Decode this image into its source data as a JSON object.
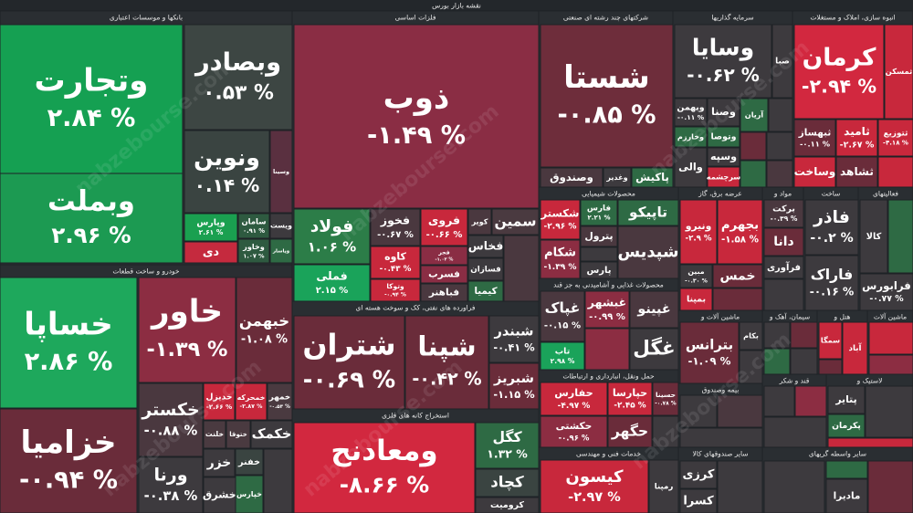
{
  "header": {
    "title": "نقشه بازار بورس"
  },
  "watermark": "nabzebourse.com",
  "sectors": [
    {
      "name": "بانکها و موسسات اعتباری",
      "tiles": [
        {
          "name": "وتجارت",
          "change": "۲.۸۴ %",
          "color": "#15a052"
        },
        {
          "name": "وبملت",
          "change": "۲.۹۶ %",
          "color": "#1c9a52"
        },
        {
          "name": "وبصادر",
          "change": "۰.۵۳ %",
          "color": "#3d4643"
        },
        {
          "name": "ونوین",
          "change": "۰.۱۴ %",
          "color": "#3a4441"
        },
        {
          "name": "وسینا",
          "color": "#5a3040"
        },
        {
          "name": "وپارس",
          "change": "۲.۶۱ %",
          "color": "#1aa050"
        },
        {
          "name": "دی",
          "color": "#c52a3e"
        },
        {
          "name": "سامان",
          "change": "۰.۹۱ %",
          "color": "#2e5a40"
        },
        {
          "name": "وخاور",
          "change": "۱.۰۷ %",
          "color": "#2e5a40"
        },
        {
          "name": "ویست",
          "color": "#3d3a3e"
        },
        {
          "name": "وپاسار",
          "color": "#2e6a44"
        }
      ]
    },
    {
      "name": "خودرو و ساخت قطعات",
      "tiles": [
        {
          "name": "خساپا",
          "change": "۲.۸۶ %",
          "color": "#1ea85c"
        },
        {
          "name": "خزامیا",
          "change": "-۰.۹۴ %",
          "color": "#6a2c3a"
        },
        {
          "name": "خاور",
          "change": "-۱.۳۹ %",
          "color": "#8c2d42"
        },
        {
          "name": "خبهمن",
          "change": "-۱.۰۸ %",
          "color": "#6a2c3a"
        },
        {
          "name": "خکستر",
          "change": "-۰.۸۸ %",
          "color": "#4a383f"
        },
        {
          "name": "خدیزل",
          "change": "-۲.۶۶ %",
          "color": "#c8283c"
        },
        {
          "name": "خمحرکه",
          "change": "-۲.۸۷ %",
          "color": "#c8283c"
        },
        {
          "name": "خمهر",
          "change": "-۰.۵۳ %",
          "color": "#4a3a40"
        },
        {
          "name": "خلنت",
          "color": "#4a3a40"
        },
        {
          "name": "ختوقا",
          "color": "#4a3a40"
        },
        {
          "name": "خکمک",
          "color": "#3d3a3e"
        },
        {
          "name": "خزر",
          "color": "#3d3a3e"
        },
        {
          "name": "خفنر",
          "color": "#3a4441"
        },
        {
          "name": "ورنا",
          "change": "-۰.۳۸ %",
          "color": "#3d3a3e"
        },
        {
          "name": "خشرق",
          "color": "#3d3a3e"
        },
        {
          "name": "خپارس",
          "color": "#2e6a44"
        }
      ]
    },
    {
      "name": "فلزات اساسی",
      "tiles": [
        {
          "name": "ذوب",
          "change": "-۱.۴۹ %",
          "color": "#8a2d44"
        },
        {
          "name": "فولاد",
          "change": "۱.۰۶ %",
          "color": "#2c7d48"
        },
        {
          "name": "فملی",
          "change": "۲.۱۵ %",
          "color": "#1aa35a"
        },
        {
          "name": "فخوز",
          "change": "-۰.۶۷ %",
          "color": "#4a383f"
        },
        {
          "name": "فروی",
          "change": "-۰.۶۶ %",
          "color": "#c8283c"
        },
        {
          "name": "کویر",
          "color": "#4a383f"
        },
        {
          "name": "سمین",
          "color": "#4a3a40"
        },
        {
          "name": "کاوه",
          "change": "-۰.۴۳ %",
          "color": "#c8283c"
        },
        {
          "name": "وتوکا",
          "change": "-۰.۹۴ %",
          "color": "#c8283c"
        },
        {
          "name": "فجر",
          "change": "-۱.۰۲ %",
          "color": "#8a2d44"
        },
        {
          "name": "فسرب",
          "color": "#8a2d44"
        },
        {
          "name": "فخاس",
          "color": "#3d3a3e"
        },
        {
          "name": "فسازان",
          "color": "#3d3a3e"
        },
        {
          "name": "کیمیا",
          "color": "#2e6a44"
        },
        {
          "name": "فباهنر",
          "color": "#4a383f"
        }
      ]
    },
    {
      "name": "فراورده های نفتی، کک و سوخت هسته ای",
      "tiles": [
        {
          "name": "شتران",
          "change": "-۰.۶۹ %",
          "color": "#6a2c3a"
        },
        {
          "name": "شپنا",
          "change": "-۰.۴۲ %",
          "color": "#6a2c3a"
        },
        {
          "name": "شبندر",
          "change": "-۰.۴۱ %",
          "color": "#3d3a3e"
        },
        {
          "name": "شبریز",
          "change": "-۱.۱۵ %",
          "color": "#6a2c3a"
        }
      ]
    },
    {
      "name": "استخراج کانه های فلزی",
      "tiles": [
        {
          "name": "ومعادنح",
          "change": "-۸.۶۶ %",
          "color": "#d2283f"
        },
        {
          "name": "کگل",
          "change": "۱.۳۲ %",
          "color": "#2e6a44"
        },
        {
          "name": "کچاد",
          "color": "#3a4441"
        },
        {
          "name": "کرومیت",
          "color": "#3d3a3e"
        }
      ]
    },
    {
      "name": "شرکتهای چند رشته ای صنعتی",
      "tiles": [
        {
          "name": "شستا",
          "change": "-۰.۸۵ %",
          "color": "#6e2d3b"
        },
        {
          "name": "وصندوق",
          "color": "#4a383f"
        },
        {
          "name": "وغدیر",
          "color": "#3d3a3e"
        },
        {
          "name": "پاکیش",
          "color": "#2e6a44"
        }
      ]
    },
    {
      "name": "محصولات شیمیایی",
      "tiles": [
        {
          "name": "شکستر",
          "change": "-۲.۹۶ %",
          "color": "#c8283c"
        },
        {
          "name": "شکام",
          "change": "-۱.۳۹ %",
          "color": "#8c2d42"
        },
        {
          "name": "فارس",
          "change": "۲.۲۱ %",
          "color": "#2e6a44"
        },
        {
          "name": "تاپیکو",
          "color": "#2e6a44"
        },
        {
          "name": "پترول",
          "color": "#4a383f"
        },
        {
          "name": "پارس",
          "color": "#3d3a3e"
        },
        {
          "name": "شپدیس",
          "color": "#4a383f"
        }
      ]
    },
    {
      "name": "محصولات غذایی و آشامیدنی به جز قند",
      "tiles": [
        {
          "name": "غپاک",
          "change": "-۰.۱۵ %",
          "color": "#4a383f"
        },
        {
          "name": "غبشهر",
          "change": "-۰.۹۹ %",
          "color": "#8c2d42"
        },
        {
          "name": "غپینو",
          "color": "#4a383f"
        },
        {
          "name": "تاب",
          "change": "۲.۹۸ %",
          "color": "#1aa35a"
        },
        {
          "name": "غگل",
          "color": "#3d3a3e"
        }
      ]
    },
    {
      "name": "حمل ونقل، انبارداری و ارتباطات",
      "tiles": [
        {
          "name": "حفارس",
          "change": "-۴.۹۷ %",
          "color": "#c8283c"
        },
        {
          "name": "حپارسا",
          "change": "-۲.۴۵ %",
          "color": "#c8283c"
        },
        {
          "name": "حسینا",
          "change": "-۰.۷۸ %",
          "color": "#6a2c3a"
        },
        {
          "name": "حکشتی",
          "change": "-۰.۹۶ %",
          "color": "#8c2d42"
        },
        {
          "name": "حگهر",
          "color": "#6a2c3a"
        }
      ]
    },
    {
      "name": "خدمات فنی و مهندسی",
      "tiles": [
        {
          "name": "کیسون",
          "change": "-۲.۹۷ %",
          "color": "#c8283c"
        },
        {
          "name": "رمپنا",
          "color": "#3d3a3e"
        }
      ]
    },
    {
      "name": "سرمایه گذاریها",
      "tiles": [
        {
          "name": "وسایا",
          "change": "-۰.۶۲ %",
          "color": "#3d3a3e"
        },
        {
          "name": "صبا",
          "color": "#3d3a3e"
        },
        {
          "name": "وبهمن",
          "change": "-۰.۱۱ %",
          "color": "#3d3a3e"
        },
        {
          "name": "وصنا",
          "color": "#3d3a3e"
        },
        {
          "name": "آریان",
          "color": "#2e6a44"
        },
        {
          "name": "وخارزم",
          "color": "#2e6a44"
        },
        {
          "name": "وتوصا",
          "color": "#2e6a44"
        },
        {
          "name": "والی",
          "color": "#3d3a3e"
        },
        {
          "name": "وسپه",
          "color": "#3d3a3e"
        },
        {
          "name": "سرچشمه",
          "color": "#c8283c"
        }
      ]
    },
    {
      "name": "انبوه سازی، املاک و مستغلات",
      "tiles": [
        {
          "name": "کرمان",
          "change": "-۲.۹۴ %",
          "color": "#d2283f"
        },
        {
          "name": "ثمسکن",
          "color": "#c8283c"
        },
        {
          "name": "ثبهساز",
          "change": "-۰.۱۱ %",
          "color": "#6a2c3a"
        },
        {
          "name": "ثامید",
          "change": "-۲.۶۷ %",
          "color": "#c8283c"
        },
        {
          "name": "ثتوزیع",
          "change": "-۴.۱۸ %",
          "color": "#c8283c"
        },
        {
          "name": "وساخت",
          "color": "#c8283c"
        },
        {
          "name": "ثشاهد",
          "color": "#6a2c3a"
        }
      ]
    },
    {
      "name": "عرضه برق، گاز",
      "tiles": [
        {
          "name": "ونیرو",
          "change": "-۲.۹ %",
          "color": "#c8283c"
        },
        {
          "name": "بجهرم",
          "change": "-۱.۵۸ %",
          "color": "#c8283c"
        },
        {
          "name": "مبین",
          "change": "-۰.۳۰ %",
          "color": "#3d3a3e"
        },
        {
          "name": "بمپنا",
          "color": "#c8283c"
        },
        {
          "name": "خمس",
          "color": "#6a2c3a"
        }
      ]
    },
    {
      "name": "مواد و",
      "tiles": [
        {
          "name": "برکت",
          "change": "-۰.۳۹ %",
          "color": "#4a383f"
        },
        {
          "name": "دانا",
          "color": "#6a2c3a"
        },
        {
          "name": "فرآوری",
          "color": "#3d3a3e"
        }
      ]
    },
    {
      "name": "ساخت",
      "tiles": [
        {
          "name": "فاذر",
          "change": "-۰.۲ %",
          "color": "#3d3a3e"
        },
        {
          "name": "فاراک",
          "change": "-۰.۱۶ %",
          "color": "#3d3a3e"
        }
      ]
    },
    {
      "name": "فعالیتهای",
      "tiles": [
        {
          "name": "کالا",
          "color": "#3d3a3e"
        },
        {
          "name": "فرابورس",
          "change": "-۰.۷۷ %",
          "color": "#3d3a3e"
        }
      ]
    },
    {
      "name": "ماشین آلات و",
      "tiles": [
        {
          "name": "بترانس",
          "change": "-۱.۰۹ %",
          "color": "#6a2c3a"
        },
        {
          "name": "بکام",
          "color": "#3d3a3e"
        }
      ]
    },
    {
      "name": "سیمان، آهک و",
      "tiles": []
    },
    {
      "name": "هتل و",
      "tiles": [
        {
          "name": "سمگا",
          "color": "#c8283c"
        },
        {
          "name": "آباد",
          "color": "#c8283c"
        }
      ]
    },
    {
      "name": "ماشین آلات",
      "tiles": []
    },
    {
      "name": "بیمه وصندوق",
      "tiles": []
    },
    {
      "name": "قند و شکر",
      "tiles": []
    },
    {
      "name": "لاستیک و",
      "tiles": [
        {
          "name": "پتایر",
          "color": "#3d3a3e"
        },
        {
          "name": "پکرمان",
          "color": "#2e6a44"
        }
      ]
    },
    {
      "name": "سایر صندوقهای کالا",
      "tiles": [
        {
          "name": "کرزی",
          "color": "#3d3a3e"
        },
        {
          "name": "کسرا",
          "color": "#3d3a3e"
        }
      ]
    },
    {
      "name": "سایر واسطه گریهای",
      "tiles": [
        {
          "name": "مادیرا",
          "color": "#3d3a3e"
        }
      ]
    }
  ]
}
